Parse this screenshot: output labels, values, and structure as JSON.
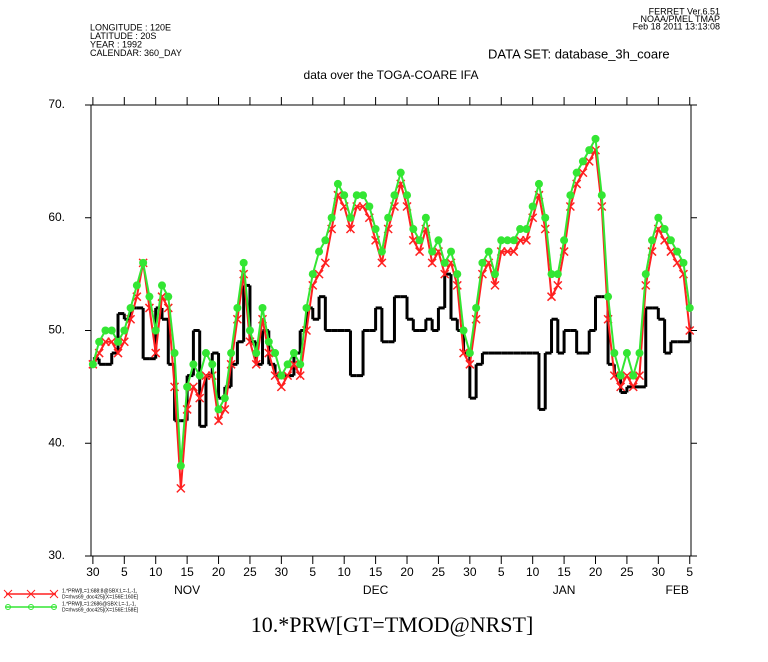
{
  "chart_data": {
    "type": "line",
    "header_left": [
      "LONGITUDE : 120E",
      "LATITUDE : 20S",
      "YEAR : 1992",
      "CALENDAR: 360_DAY"
    ],
    "header_right": [
      "FERRET  Ver.6.51",
      "NOAA/PMEL TMAP",
      "Feb 18 2011 13:13:08"
    ],
    "dataset": "DATA SET: database_3h_coare",
    "title": "data over the TOGA-COARE IFA",
    "xlabel": "10.*PRW[GT=TMOD@NRST]",
    "x": [
      0,
      1,
      2,
      3,
      4,
      5,
      6,
      7,
      8,
      9,
      10,
      11,
      12,
      13,
      14,
      15,
      16,
      17,
      18,
      19,
      20,
      21,
      22,
      23,
      24,
      25,
      26,
      27,
      28,
      29,
      30,
      31,
      32,
      33,
      34,
      35,
      36,
      37,
      38,
      39,
      40,
      41,
      42,
      43,
      44,
      45,
      46,
      47,
      48,
      49,
      50,
      51,
      52,
      53,
      54,
      55,
      56,
      57,
      58,
      59,
      60,
      61,
      62,
      63,
      64,
      65,
      66,
      67,
      68,
      69,
      70,
      71,
      72,
      73,
      74,
      75,
      76,
      77,
      78,
      79,
      80,
      81,
      82,
      83,
      84,
      85,
      86,
      87,
      88,
      89,
      90,
      91,
      92,
      93,
      94,
      95
    ],
    "xlim": [
      -0.3,
      95.2
    ],
    "xticks": [
      {
        "value": 0,
        "label": "30"
      },
      {
        "value": 5,
        "label": "5"
      },
      {
        "value": 10,
        "label": "10"
      },
      {
        "value": 15,
        "label": "15"
      },
      {
        "value": 20,
        "label": "20"
      },
      {
        "value": 25,
        "label": "25"
      },
      {
        "value": 30,
        "label": "30"
      },
      {
        "value": 35,
        "label": "5"
      },
      {
        "value": 40,
        "label": "10"
      },
      {
        "value": 45,
        "label": "15"
      },
      {
        "value": 50,
        "label": "20"
      },
      {
        "value": 55,
        "label": "25"
      },
      {
        "value": 60,
        "label": "30"
      },
      {
        "value": 65,
        "label": "5"
      },
      {
        "value": 70,
        "label": "10"
      },
      {
        "value": 75,
        "label": "15"
      },
      {
        "value": 80,
        "label": "20"
      },
      {
        "value": 85,
        "label": "25"
      },
      {
        "value": 90,
        "label": "30"
      },
      {
        "value": 95,
        "label": "5"
      }
    ],
    "month_labels": [
      {
        "value": 15,
        "label": "NOV"
      },
      {
        "value": 45,
        "label": "DEC"
      },
      {
        "value": 75,
        "label": "JAN"
      },
      {
        "value": 93,
        "label": "FEB"
      }
    ],
    "ylim": [
      30,
      70
    ],
    "yticks": [
      {
        "value": 30,
        "label": "30."
      },
      {
        "value": 40,
        "label": "40."
      },
      {
        "value": 50,
        "label": "50."
      },
      {
        "value": 60,
        "label": "60."
      },
      {
        "value": 70,
        "label": "70."
      }
    ],
    "series": [
      {
        "name": "1.*PRW[L=1:688:8@SBX:L=-1,-1,",
        "name2": "D=rhvs69_doc425](X=156E:160E]",
        "color": "#ff2020",
        "marker": "x",
        "values": [
          47,
          48,
          49,
          49,
          48,
          49,
          51,
          53,
          56,
          52,
          48,
          53,
          52,
          45,
          36,
          43,
          45,
          44,
          46,
          46,
          42,
          43,
          47,
          51,
          55,
          49,
          47,
          51,
          48,
          46,
          45,
          46,
          47,
          46,
          50,
          54,
          55,
          56,
          59,
          62,
          61,
          59,
          61,
          61,
          60,
          58,
          56,
          59,
          61,
          63,
          61,
          58,
          57,
          59,
          56,
          57,
          55,
          56,
          54,
          48,
          47,
          51,
          55,
          56,
          54,
          57,
          57,
          57,
          58,
          58,
          60,
          62,
          59,
          53,
          54,
          57,
          61,
          63,
          64,
          65,
          66,
          61,
          51,
          46,
          45,
          46,
          45,
          46,
          54,
          57,
          59,
          58,
          57,
          56,
          55,
          50
        ]
      },
      {
        "name": "1.*PRW[L=1:2686@SBX:L=-1,-1,",
        "name2": "D=rhvs69_doc425](X=156E:158E]",
        "color": "#33e633",
        "marker": "circle",
        "values": [
          47,
          49,
          50,
          50,
          49,
          50,
          52,
          54,
          56,
          53,
          50,
          54,
          53,
          48,
          38,
          45,
          47,
          46,
          48,
          47,
          43,
          44,
          48,
          52,
          56,
          50,
          48,
          52,
          49,
          48,
          46,
          47,
          48,
          47,
          52,
          55,
          57,
          58,
          60,
          63,
          62,
          60,
          62,
          62,
          61,
          59,
          57,
          60,
          62,
          64,
          62,
          59,
          58,
          60,
          57,
          58,
          56,
          57,
          55,
          50,
          48,
          52,
          56,
          57,
          55,
          58,
          58,
          58,
          59,
          59,
          61,
          63,
          60,
          55,
          55,
          58,
          62,
          64,
          65,
          66,
          67,
          62,
          53,
          48,
          46,
          48,
          46,
          48,
          55,
          58,
          60,
          59,
          58,
          57,
          56,
          52
        ]
      },
      {
        "color": "#000000",
        "marker": "step",
        "values": [
          47.5,
          47,
          47,
          48,
          51.5,
          51,
          52,
          52,
          47.5,
          47.5,
          52,
          51,
          47,
          42,
          42,
          46,
          50,
          41.5,
          46,
          48,
          44,
          45,
          47,
          49,
          54,
          49,
          47,
          50,
          47,
          46,
          46,
          46,
          48,
          50,
          52,
          51,
          53,
          50,
          50,
          50,
          50,
          46,
          46,
          50,
          50,
          52,
          49,
          49,
          53,
          53,
          51,
          50,
          50,
          51,
          50,
          52,
          55,
          51,
          50,
          48,
          44,
          47,
          48,
          48,
          48,
          48,
          48,
          48,
          48,
          48,
          48,
          43,
          48,
          51,
          48,
          50,
          50,
          48,
          48,
          50,
          53,
          53,
          47,
          46,
          44.5,
          45,
          45,
          45,
          52,
          52,
          51,
          48,
          49,
          49,
          49,
          50
        ]
      }
    ]
  }
}
